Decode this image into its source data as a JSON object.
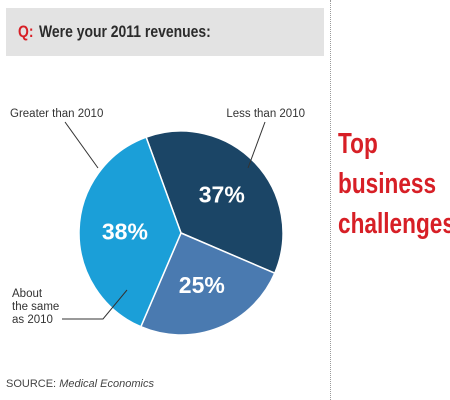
{
  "question": {
    "prefix": "Q:",
    "text": "Were your 2011 revenues:"
  },
  "side_title": [
    "Top",
    "business",
    "challenges"
  ],
  "source": {
    "label": "SOURCE:",
    "publication": "Medical Economics"
  },
  "chart_data": {
    "type": "pie",
    "title": "",
    "slices": [
      {
        "label": "Less than 2010",
        "value": 37,
        "display": "37%",
        "color": "#1b4566"
      },
      {
        "label": "About the same as 2010",
        "value": 25,
        "display": "25%",
        "color": "#4a7ab0"
      },
      {
        "label": "Greater than 2010",
        "value": 38,
        "display": "38%",
        "color": "#1b9fd8"
      }
    ]
  }
}
